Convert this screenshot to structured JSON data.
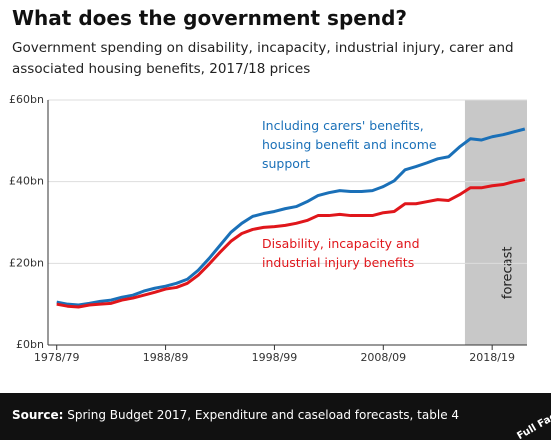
{
  "chart_data": {
    "type": "line",
    "title": "What does the government spend?",
    "subtitle": "Government spending on disability, incapacity, industrial injury, carer and associated housing benefits, 2017/18 prices",
    "x": [
      1978,
      1979,
      1980,
      1981,
      1982,
      1983,
      1984,
      1985,
      1986,
      1987,
      1988,
      1989,
      1990,
      1991,
      1992,
      1993,
      1994,
      1995,
      1996,
      1997,
      1998,
      1999,
      2000,
      2001,
      2002,
      2003,
      2004,
      2005,
      2006,
      2007,
      2008,
      2009,
      2010,
      2011,
      2012,
      2013,
      2014,
      2015,
      2016,
      2017,
      2018,
      2019,
      2020,
      2021
    ],
    "series": [
      {
        "name": "Including carers' benefits, housing benefit and income support",
        "color": "#1a70b8",
        "values": [
          10.5,
          10.0,
          9.8,
          10.2,
          10.7,
          11.0,
          11.7,
          12.2,
          13.2,
          13.9,
          14.4,
          15.1,
          16.1,
          18.3,
          21.2,
          24.4,
          27.6,
          29.8,
          31.5,
          32.2,
          32.7,
          33.4,
          33.9,
          35.1,
          36.6,
          37.3,
          37.8,
          37.6,
          37.6,
          37.8,
          38.8,
          40.2,
          42.9,
          43.7,
          44.6,
          45.6,
          46.1,
          48.5,
          50.5,
          50.2,
          51.0,
          51.5,
          52.2,
          52.9
        ]
      },
      {
        "name": "Disability, incapacity and industrial injury benefits",
        "color": "#e0161b",
        "values": [
          10.0,
          9.5,
          9.3,
          9.8,
          10.0,
          10.2,
          11.0,
          11.5,
          12.2,
          12.9,
          13.7,
          14.1,
          15.1,
          17.1,
          19.8,
          22.7,
          25.4,
          27.3,
          28.3,
          28.8,
          29.0,
          29.3,
          29.8,
          30.5,
          31.7,
          31.7,
          32.0,
          31.7,
          31.7,
          31.7,
          32.4,
          32.7,
          34.6,
          34.6,
          35.1,
          35.6,
          35.4,
          36.8,
          38.5,
          38.5,
          39.0,
          39.3,
          40.0,
          40.5
        ]
      }
    ],
    "xlim": [
      1977.2,
      2021.2
    ],
    "xticks": [
      {
        "value": 1978,
        "label": "1978/79"
      },
      {
        "value": 1988,
        "label": "1988/89"
      },
      {
        "value": 1998,
        "label": "1998/99"
      },
      {
        "value": 2008,
        "label": "2008/09"
      },
      {
        "value": 2018,
        "label": "2018/19"
      }
    ],
    "ylim": [
      0,
      60
    ],
    "yticks": [
      {
        "value": 0,
        "label": "£0bn"
      },
      {
        "value": 20,
        "label": "£20bn"
      },
      {
        "value": 40,
        "label": "£40bn"
      },
      {
        "value": 60,
        "label": "£60bn"
      }
    ],
    "grid": true,
    "forecast_span": [
      2015.5,
      2021.2
    ],
    "forecast_label": "forecast",
    "source_label": "Source:",
    "source": "Spring Budget 2017, Expenditure and caseload forecasts, table 4",
    "logo": "Full Fact"
  }
}
